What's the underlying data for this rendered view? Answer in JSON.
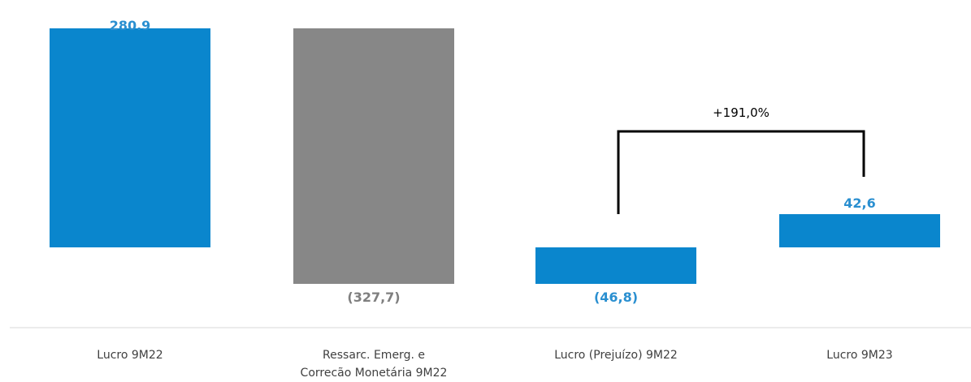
{
  "chart_data": {
    "type": "bar",
    "subtype": "waterfall",
    "categories": [
      [
        "Lucro 9M22"
      ],
      [
        "Ressarc. Emerg. e",
        "Correcão Monetária 9M22"
      ],
      [
        "Lucro (Prejuízo) 9M22"
      ],
      [
        "Lucro 9M23"
      ]
    ],
    "values": [
      280.9,
      -327.7,
      -46.8,
      42.6
    ],
    "bar_base": [
      0,
      280.9,
      0,
      0
    ],
    "data_labels": [
      "280.9",
      "(327,7)",
      "(46,8)",
      "42,6"
    ],
    "bar_colors": [
      "#0a86cd",
      "#878787",
      "#0a86cd",
      "#0a86cd"
    ],
    "label_colors": [
      "#2a8fd0",
      "#7f7f7f",
      "#2a8fd0",
      "#2a8fd0"
    ],
    "annotation": {
      "text": "+191,0%",
      "from_category": 2,
      "to_category": 3
    },
    "axis_color": "#d9d9d9",
    "grid": false,
    "legend": "none"
  }
}
